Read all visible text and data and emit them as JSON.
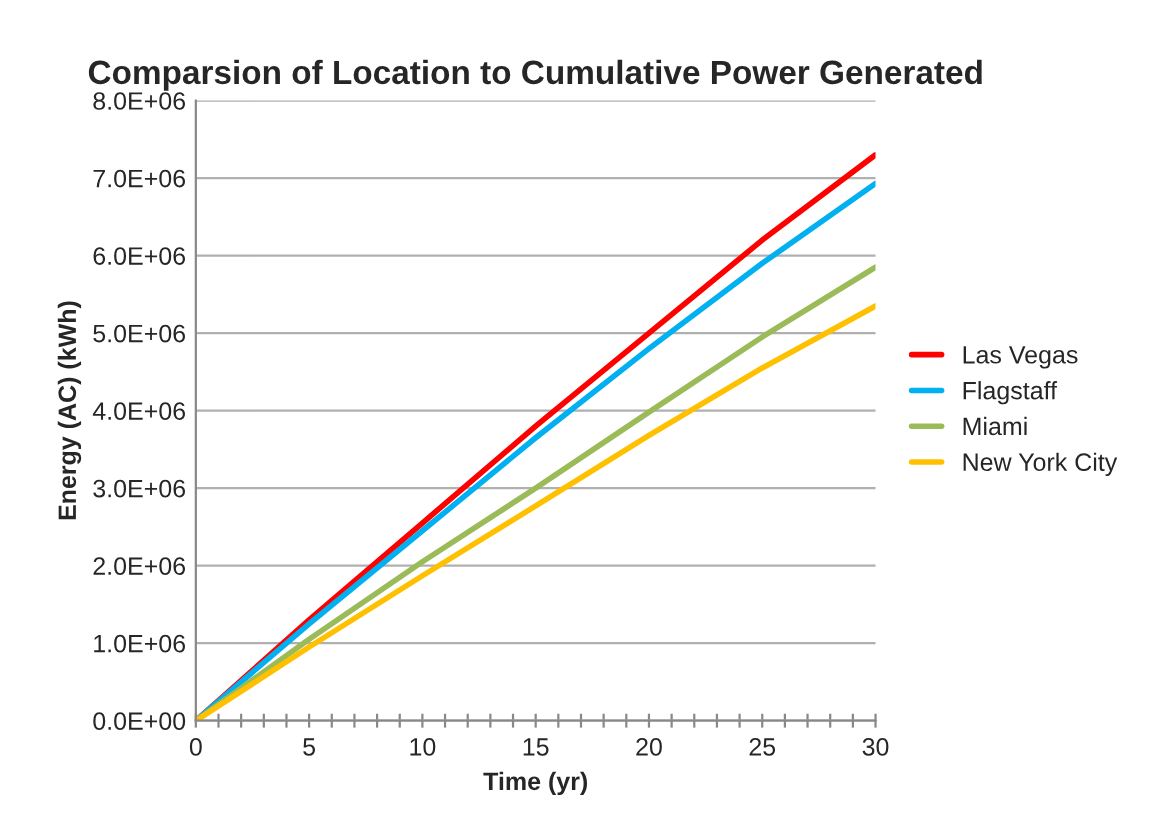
{
  "chart_data": {
    "type": "line",
    "title": "Comparsion of Location to Cumulative Power Generated",
    "xlabel": "Time (yr)",
    "ylabel": "Energy (AC) (kWh)",
    "x": [
      0,
      5,
      10,
      15,
      20,
      25,
      30
    ],
    "series": [
      {
        "name": "Las Vegas",
        "color": "#ff0000",
        "values": [
          0,
          1300000,
          2550000,
          3800000,
          5000000,
          6200000,
          7300000
        ]
      },
      {
        "name": "Flagstaff",
        "color": "#00b0f0",
        "values": [
          0,
          1250000,
          2450000,
          3650000,
          4800000,
          5900000,
          6930000
        ]
      },
      {
        "name": "Miami",
        "color": "#9bbb59",
        "values": [
          0,
          1050000,
          2050000,
          3000000,
          3980000,
          4950000,
          5850000
        ]
      },
      {
        "name": "New York City",
        "color": "#ffc000",
        "values": [
          0,
          950000,
          1870000,
          2770000,
          3680000,
          4550000,
          5350000
        ]
      }
    ],
    "xlim": [
      0,
      30
    ],
    "xticks": [
      0,
      {
        "value": 1,
        "label": null
      },
      {
        "value": 2,
        "label": null
      },
      {
        "value": 3,
        "label": null
      },
      {
        "value": 4,
        "label": null
      },
      5,
      {
        "value": 6,
        "label": null
      },
      {
        "value": 7,
        "label": null
      },
      {
        "value": 8,
        "label": null
      },
      {
        "value": 9,
        "label": null
      },
      10,
      {
        "value": 11,
        "label": null
      },
      {
        "value": 12,
        "label": null
      },
      {
        "value": 13,
        "label": null
      },
      {
        "value": 14,
        "label": null
      },
      15,
      {
        "value": 16,
        "label": null
      },
      {
        "value": 17,
        "label": null
      },
      {
        "value": 18,
        "label": null
      },
      {
        "value": 19,
        "label": null
      },
      20,
      {
        "value": 21,
        "label": null
      },
      {
        "value": 22,
        "label": null
      },
      {
        "value": 23,
        "label": null
      },
      {
        "value": 24,
        "label": null
      },
      25,
      {
        "value": 26,
        "label": null
      },
      {
        "value": 27,
        "label": null
      },
      {
        "value": 28,
        "label": null
      },
      {
        "value": 29,
        "label": null
      },
      30
    ],
    "ylim": [
      0,
      8000000
    ],
    "yticks": [
      {
        "value": 0,
        "label": "0.0E+00"
      },
      {
        "value": 1000000,
        "label": "1.0E+06"
      },
      {
        "value": 2000000,
        "label": "2.0E+06"
      },
      {
        "value": 3000000,
        "label": "3.0E+06"
      },
      {
        "value": 4000000,
        "label": "4.0E+06"
      },
      {
        "value": 5000000,
        "label": "5.0E+06"
      },
      {
        "value": 6000000,
        "label": "6.0E+06"
      },
      {
        "value": 7000000,
        "label": "7.0E+06"
      },
      {
        "value": 8000000,
        "label": "8.0E+06"
      }
    ],
    "grid": "y",
    "legend": "right",
    "marker": "none",
    "line_style": "solid"
  }
}
